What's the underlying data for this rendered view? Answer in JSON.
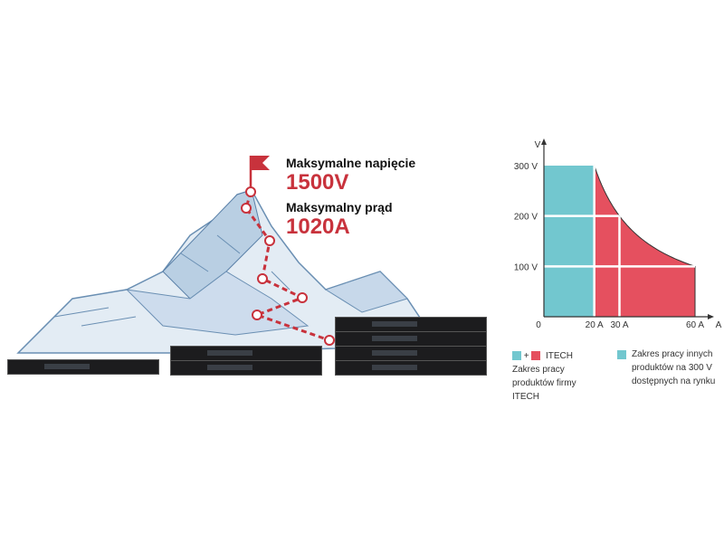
{
  "headline": {
    "voltage_label": "Maksymalne napięcie",
    "voltage_value": "1500V",
    "current_label": "Maksymalny prąd",
    "current_value": "1020A"
  },
  "colors": {
    "accent_red": "#c8323c",
    "itech_red": "#e5505f",
    "other_teal": "#72c7cf"
  },
  "chart_data": {
    "type": "area",
    "xlabel": "A",
    "ylabel": "V",
    "x_ticks": [
      "0",
      "20 A",
      "30 A",
      "60 A"
    ],
    "y_ticks": [
      "300 V",
      "200 V",
      "100 V"
    ],
    "xlim": [
      0,
      60
    ],
    "ylim": [
      0,
      300
    ],
    "grid": true,
    "regions": [
      {
        "name": "other",
        "rect": {
          "x": [
            0,
            20
          ],
          "y": [
            0,
            300
          ]
        },
        "color": "#72c7cf"
      },
      {
        "name": "itech",
        "boundary": [
          [
            20,
            300
          ],
          [
            25,
            240
          ],
          [
            30,
            200
          ],
          [
            40,
            150
          ],
          [
            50,
            120
          ],
          [
            60,
            100
          ]
        ],
        "color": "#e5505f"
      }
    ],
    "legend": {
      "itech_symbol": "+",
      "itech_title": "ITECH",
      "itech_desc": [
        "Zakres pracy",
        "produktów firmy",
        "ITECH"
      ],
      "other_desc": [
        "Zakres pracy innych",
        "produktów na 300 V",
        "dostępnych na rynku"
      ]
    }
  }
}
